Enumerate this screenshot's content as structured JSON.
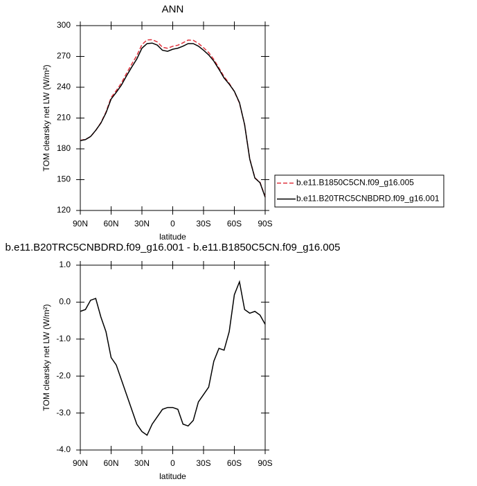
{
  "chart_data": [
    {
      "type": "line",
      "title": "ANN",
      "xlabel": "latitude",
      "ylabel": "TOM clearsky net LW (W/m²)",
      "x": [
        90,
        85,
        80,
        75,
        70,
        65,
        60,
        55,
        50,
        45,
        40,
        35,
        30,
        25,
        20,
        15,
        10,
        5,
        0,
        -5,
        -10,
        -15,
        -20,
        -25,
        -30,
        -35,
        -40,
        -45,
        -50,
        -55,
        -60,
        -65,
        -70,
        -75,
        -80,
        -85,
        -90
      ],
      "xlim": [
        90,
        -90
      ],
      "xticks": [
        {
          "value": 90,
          "label": "90N"
        },
        {
          "value": 60,
          "label": "60N"
        },
        {
          "value": 30,
          "label": "30N"
        },
        0,
        {
          "value": -30,
          "label": "30S"
        },
        {
          "value": -60,
          "label": "60S"
        },
        {
          "value": -90,
          "label": "90S"
        }
      ],
      "ylim": [
        120,
        300
      ],
      "yticks": [
        120,
        150,
        180,
        210,
        240,
        270,
        300
      ],
      "legend": "right",
      "series": [
        {
          "name": "b.e11.B1850C5CN.f09_g16.005",
          "color": "#e0303a",
          "dash": true,
          "values": [
            188.3,
            189.2,
            191.9,
            197.9,
            205.4,
            215.8,
            230,
            236.7,
            244.1,
            253.5,
            262.4,
            270.8,
            281.5,
            286.1,
            286.3,
            284.1,
            278.9,
            277.9,
            279.9,
            280.9,
            283.3,
            285.9,
            285.7,
            282.7,
            278.5,
            273.8,
            267.1,
            258.8,
            250.3,
            243.8,
            235.8,
            224.5,
            203.7,
            170.3,
            151.8,
            147.4,
            133.6
          ]
        },
        {
          "name": "b.e11.B20TRC5CNBDRD.f09_g16.001",
          "color": "#000000",
          "dash": false,
          "values": [
            188,
            189,
            192,
            198,
            205,
            215,
            228.5,
            235,
            242,
            251,
            259.5,
            267.5,
            278,
            282.5,
            283,
            281,
            276,
            275,
            277,
            278,
            280,
            282.5,
            282.5,
            280,
            276,
            271.5,
            265.5,
            257.5,
            249,
            243,
            236,
            225,
            203.5,
            170,
            151.5,
            147,
            133
          ]
        }
      ]
    },
    {
      "type": "line",
      "title": "b.e11.B20TRC5CNBDRD.f09_g16.001 - b.e11.B1850C5CN.f09_g16.005",
      "xlabel": "latitude",
      "ylabel": "TOM clearsky net LW (W/m²)",
      "x": [
        90,
        85,
        80,
        75,
        70,
        65,
        60,
        55,
        50,
        45,
        40,
        35,
        30,
        25,
        20,
        15,
        10,
        5,
        0,
        -5,
        -10,
        -15,
        -20,
        -25,
        -30,
        -35,
        -40,
        -45,
        -50,
        -55,
        -60,
        -65,
        -70,
        -75,
        -80,
        -85,
        -90
      ],
      "xlim": [
        90,
        -90
      ],
      "xticks": [
        {
          "value": 90,
          "label": "90N"
        },
        {
          "value": 60,
          "label": "60N"
        },
        {
          "value": 30,
          "label": "30N"
        },
        0,
        {
          "value": -30,
          "label": "30S"
        },
        {
          "value": -60,
          "label": "60S"
        },
        {
          "value": -90,
          "label": "90S"
        }
      ],
      "ylim": [
        -4,
        1
      ],
      "yticks": [
        {
          "value": -4,
          "label": "-4.0"
        },
        {
          "value": -3,
          "label": "-3.0"
        },
        {
          "value": -2,
          "label": "-2.0"
        },
        {
          "value": -1,
          "label": "-1.0"
        },
        {
          "value": 0,
          "label": "0.0"
        },
        {
          "value": 1,
          "label": "1.0"
        }
      ],
      "color": "#000000",
      "values": [
        -0.25,
        -0.2,
        0.05,
        0.1,
        -0.4,
        -0.8,
        -1.5,
        -1.7,
        -2.1,
        -2.5,
        -2.9,
        -3.3,
        -3.5,
        -3.6,
        -3.3,
        -3.1,
        -2.9,
        -2.85,
        -2.85,
        -2.9,
        -3.3,
        -3.35,
        -3.2,
        -2.7,
        -2.5,
        -2.3,
        -1.6,
        -1.25,
        -1.3,
        -0.8,
        0.2,
        0.55,
        -0.2,
        -0.3,
        -0.25,
        -0.35,
        -0.6
      ]
    }
  ]
}
